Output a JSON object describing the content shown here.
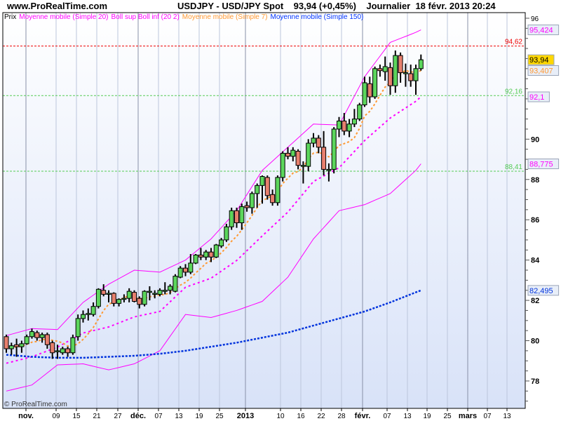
{
  "header": {
    "site": "www.ProRealTime.com",
    "title": "USDJPY - USD/JPY Spot    93,94 (+0,45%)    Journalier  18 févr. 2013 20:24"
  },
  "legend": [
    {
      "text": "Prix",
      "color": "#000000"
    },
    {
      "text": "Moyenne mobile (Simple 20)",
      "color": "#ff00ff"
    },
    {
      "text": "Boll sup Boll inf (20 2)",
      "color": "#ff00ff"
    },
    {
      "text": "Moyenne mobile (Simple 7)",
      "color": "#ff9933"
    },
    {
      "text": "Moyenne mobile (Simple 150)",
      "color": "#0033ff"
    }
  ],
  "footer": "© ProRealTime.com",
  "chart_data": {
    "type": "candlestick",
    "ylim": [
      76.7,
      96.3
    ],
    "y_ticks": [
      "96",
      "90",
      "88",
      "86",
      "84",
      "82",
      "80",
      "78"
    ],
    "x_tick_labels": [
      "nov.",
      "09",
      "15",
      "21",
      "27",
      "déc.",
      "07",
      "13",
      "19",
      "25",
      "2013",
      "10",
      "16",
      "22",
      "28",
      "févr.",
      "07",
      "13",
      "19",
      "25",
      "mars",
      "07",
      "13"
    ],
    "month_labels": [
      "nov.",
      "déc.",
      "2013",
      "févr.",
      "mars"
    ],
    "colors": {
      "up": "#5cd65c",
      "down": "#e8806e",
      "ma20": "#ff00ff",
      "boll": "#ff00ff",
      "ma7": "#ff9933",
      "ma150": "#0033dd"
    },
    "candles_ohlc": [
      [
        80.2,
        80.3,
        79.4,
        79.6
      ],
      [
        79.6,
        79.9,
        79.3,
        79.75
      ],
      [
        79.8,
        80.1,
        79.2,
        79.7
      ],
      [
        79.7,
        80.0,
        79.4,
        79.85
      ],
      [
        79.85,
        80.3,
        79.8,
        80.2
      ],
      [
        80.2,
        80.6,
        80.1,
        80.45
      ],
      [
        80.4,
        80.5,
        80.0,
        80.15
      ],
      [
        80.15,
        80.4,
        79.9,
        80.3
      ],
      [
        80.3,
        80.4,
        79.6,
        79.8
      ],
      [
        79.9,
        80.0,
        79.1,
        79.4
      ],
      [
        79.5,
        79.8,
        79.1,
        79.5
      ],
      [
        79.4,
        79.7,
        79.3,
        79.6
      ],
      [
        79.6,
        79.7,
        79.2,
        79.4
      ],
      [
        79.4,
        80.3,
        79.3,
        80.15
      ],
      [
        80.2,
        81.3,
        80.0,
        81.1
      ],
      [
        81.1,
        81.5,
        80.9,
        81.3
      ],
      [
        81.35,
        81.6,
        81.0,
        81.35
      ],
      [
        81.3,
        81.9,
        81.2,
        81.7
      ],
      [
        81.7,
        82.6,
        81.6,
        82.55
      ],
      [
        82.5,
        82.8,
        82.2,
        82.3
      ],
      [
        82.35,
        82.5,
        81.9,
        82.35
      ],
      [
        82.35,
        82.4,
        81.7,
        81.85
      ],
      [
        81.85,
        82.1,
        81.7,
        82.05
      ],
      [
        82.1,
        82.3,
        81.9,
        82.1
      ],
      [
        82.1,
        82.6,
        81.9,
        82.45
      ],
      [
        82.4,
        82.5,
        81.9,
        81.95
      ],
      [
        82.1,
        82.2,
        81.6,
        81.8
      ],
      [
        81.8,
        82.5,
        81.7,
        82.45
      ],
      [
        82.45,
        82.7,
        82.0,
        82.45
      ],
      [
        82.35,
        82.5,
        82.1,
        82.35
      ],
      [
        82.3,
        82.6,
        82.2,
        82.5
      ],
      [
        82.5,
        82.9,
        82.3,
        82.5
      ],
      [
        82.5,
        82.8,
        82.3,
        82.7
      ],
      [
        82.45,
        83.3,
        82.4,
        83.2
      ],
      [
        83.15,
        83.7,
        83.1,
        83.6
      ],
      [
        83.6,
        83.8,
        83.2,
        83.4
      ],
      [
        83.4,
        84.3,
        83.3,
        83.85
      ],
      [
        83.85,
        84.3,
        83.8,
        84.25
      ],
      [
        84.25,
        84.6,
        84.0,
        84.15
      ],
      [
        84.15,
        84.5,
        84.0,
        84.4
      ],
      [
        84.4,
        84.6,
        83.9,
        84.15
      ],
      [
        84.15,
        84.8,
        84.1,
        84.75
      ],
      [
        84.7,
        85.1,
        84.6,
        85.0
      ],
      [
        85.0,
        85.8,
        84.9,
        85.65
      ],
      [
        85.65,
        86.6,
        85.5,
        86.45
      ],
      [
        86.45,
        86.6,
        85.6,
        85.85
      ],
      [
        85.85,
        86.8,
        85.5,
        86.65
      ],
      [
        86.7,
        86.9,
        86.4,
        86.6
      ],
      [
        86.6,
        87.4,
        86.3,
        87.3
      ],
      [
        87.3,
        87.8,
        86.6,
        87.7
      ],
      [
        87.7,
        88.2,
        86.8,
        88.15
      ],
      [
        88.1,
        88.2,
        87.0,
        87.2
      ],
      [
        87.25,
        87.5,
        86.7,
        86.85
      ],
      [
        86.85,
        88.2,
        86.7,
        88.1
      ],
      [
        88.1,
        89.4,
        87.9,
        89.3
      ],
      [
        89.3,
        89.6,
        89.0,
        89.15
      ],
      [
        89.15,
        89.6,
        88.9,
        89.45
      ],
      [
        89.4,
        89.5,
        88.5,
        88.7
      ],
      [
        88.7,
        88.9,
        87.8,
        88.7
      ],
      [
        88.65,
        90.0,
        88.4,
        89.8
      ],
      [
        89.8,
        90.3,
        89.6,
        90.05
      ],
      [
        90.05,
        90.2,
        89.3,
        89.6
      ],
      [
        89.6,
        90.4,
        88.2,
        88.5
      ],
      [
        88.5,
        88.8,
        87.9,
        88.5
      ],
      [
        88.5,
        90.6,
        88.3,
        90.5
      ],
      [
        90.5,
        91.1,
        90.1,
        90.9
      ],
      [
        90.9,
        91.3,
        90.2,
        90.4
      ],
      [
        90.4,
        91.0,
        90.1,
        90.75
      ],
      [
        90.75,
        91.5,
        90.6,
        91.0
      ],
      [
        91.0,
        91.8,
        90.9,
        91.7
      ],
      [
        91.7,
        93.1,
        91.6,
        92.8
      ],
      [
        92.75,
        93.1,
        91.8,
        92.1
      ],
      [
        92.1,
        93.6,
        92.0,
        93.5
      ],
      [
        93.5,
        93.7,
        93.1,
        93.4
      ],
      [
        93.35,
        94.1,
        92.9,
        93.6
      ],
      [
        93.55,
        93.8,
        92.2,
        92.65
      ],
      [
        92.65,
        94.4,
        92.3,
        94.15
      ],
      [
        94.15,
        94.3,
        92.8,
        93.3
      ],
      [
        93.3,
        93.75,
        92.6,
        93.3
      ],
      [
        93.25,
        93.7,
        92.6,
        92.9
      ],
      [
        92.9,
        93.7,
        92.2,
        93.5
      ],
      [
        93.5,
        94.2,
        93.4,
        93.94
      ]
    ],
    "indicator_sample_candle_index": [
      0,
      5,
      10,
      15,
      20,
      25,
      30,
      35,
      40,
      45,
      50,
      55,
      60,
      65,
      70,
      75,
      80,
      81
    ],
    "boll_upper": [
      80.25,
      80.6,
      80.55,
      81.9,
      82.8,
      83.5,
      83.4,
      84.0,
      85.05,
      86.45,
      88.45,
      89.6,
      90.75,
      90.7,
      93.1,
      94.8,
      95.3,
      95.424
    ],
    "boll_lower": [
      77.5,
      77.8,
      78.8,
      78.85,
      78.55,
      78.85,
      79.5,
      81.3,
      81.15,
      81.5,
      81.95,
      83.15,
      85.05,
      86.45,
      86.75,
      87.3,
      88.45,
      88.775
    ],
    "ma20": [
      78.88,
      79.2,
      79.68,
      80.38,
      80.68,
      81.18,
      81.45,
      82.65,
      83.1,
      83.98,
      85.2,
      86.38,
      87.9,
      88.58,
      89.93,
      91.05,
      91.88,
      92.1
    ],
    "ma150": [
      79.3,
      79.2,
      79.15,
      79.15,
      79.2,
      79.25,
      79.35,
      79.5,
      79.7,
      79.9,
      80.15,
      80.4,
      80.75,
      81.1,
      81.45,
      81.9,
      82.4,
      82.495
    ],
    "horizontal_lines": [
      {
        "value": 94.62,
        "label": "94,62",
        "color": "#ee0000"
      },
      {
        "value": 92.16,
        "label": "92,16",
        "color": "#55cc55"
      },
      {
        "value": 88.41,
        "label": "88,41",
        "color": "#55cc55"
      }
    ],
    "price_tags": [
      {
        "value": 95.424,
        "label": "95,424",
        "color": "#ff00ff",
        "bg": "#e8eef8"
      },
      {
        "value": 93.94,
        "label": "93,94",
        "color": "#000000",
        "bg": "#ffd700"
      },
      {
        "value": 93.407,
        "label": "93,407",
        "color": "#ff9933",
        "bg": "#e8eef8"
      },
      {
        "value": 92.1,
        "label": "92,1",
        "color": "#ff00ff",
        "bg": "#e8eef8"
      },
      {
        "value": 88.775,
        "label": "88,775",
        "color": "#ff00ff",
        "bg": "#e8eef8"
      },
      {
        "value": 82.495,
        "label": "82,495",
        "color": "#0033dd",
        "bg": "#e8eef8"
      }
    ]
  }
}
